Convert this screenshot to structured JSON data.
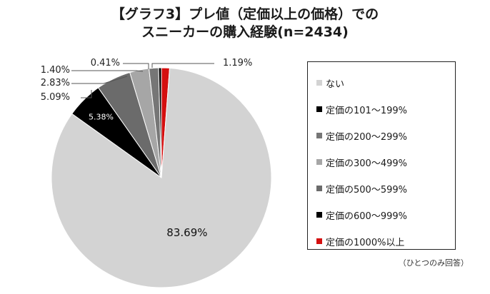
{
  "title": {
    "line1": "【グラフ3】プレ値（定価以上の価格）での",
    "line2": "スニーカーの購入経験(n=2434)"
  },
  "note": "（ひとつのみ回答）",
  "chart_data": {
    "type": "pie",
    "title": "【グラフ3】プレ値（定価以上の価格）での スニーカーの購入経験(n=2434)",
    "unit": "%",
    "start": "12 o'clock, clockwise",
    "slices": [
      {
        "name": "定価の1000%以上",
        "value": 1.19,
        "label": "1.19%",
        "color": "#d40f0f"
      },
      {
        "name": "ない",
        "value": 83.69,
        "label": "83.69%",
        "color": "#d3d3d3"
      },
      {
        "name": "定価の600〜999%",
        "value": 5.38,
        "label": "5.38%",
        "color": "#000000"
      },
      {
        "name": "定価の500〜599%",
        "value": 5.09,
        "label": "5.09%",
        "color": "#6b6b6b"
      },
      {
        "name": "定価の300〜499%",
        "value": 2.83,
        "label": "2.83%",
        "color": "#a6a6a6"
      },
      {
        "name": "定価の200〜299%",
        "value": 1.4,
        "label": "1.40%",
        "color": "#767676"
      },
      {
        "name": "定価の101〜199%",
        "value": 0.41,
        "label": "0.41%",
        "color": "#000000"
      }
    ],
    "legend": {
      "placement": "right",
      "entries": [
        {
          "label": "ない",
          "color": "#d3d3d3"
        },
        {
          "label": "定価の101～199%",
          "color": "#000000"
        },
        {
          "label": "定価の200～299%",
          "color": "#767676"
        },
        {
          "label": "定価の300～499%",
          "color": "#a6a6a6"
        },
        {
          "label": "定価の500～599%",
          "color": "#6b6b6b"
        },
        {
          "label": "定価の600～999%",
          "color": "#000000"
        },
        {
          "label": "定価の1000%以上",
          "color": "#d40f0f"
        }
      ]
    }
  }
}
